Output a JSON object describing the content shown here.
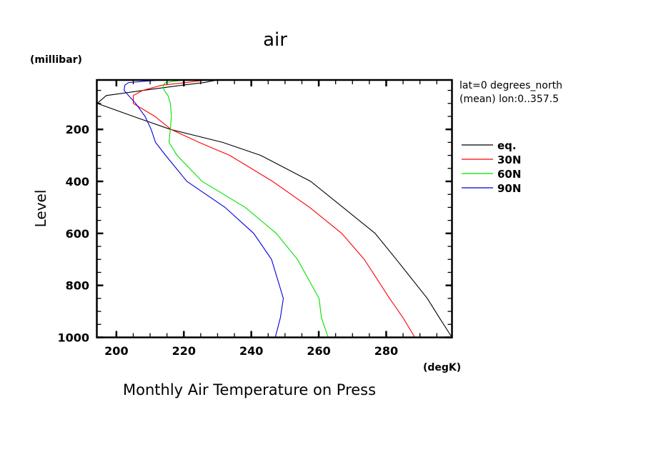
{
  "chart_data": {
    "type": "line",
    "title": "air",
    "subtitle": "Monthly Air Temperature on Press",
    "xlabel": "(degK)",
    "ylabel": "Level",
    "yunits": "(millibar)",
    "annotation": [
      "lat=0 degrees_north",
      "(mean) lon:0..357.5"
    ],
    "xlim": [
      194.2,
      299.5
    ],
    "ylim": [
      1000,
      10
    ],
    "y_inverted": true,
    "grid": false,
    "legend_position": "right",
    "x_ticks": [
      200,
      220,
      240,
      260,
      280
    ],
    "x_tick_labels": [
      "200",
      "220",
      "240",
      "260",
      "280"
    ],
    "y_ticks": [
      200,
      400,
      600,
      800,
      1000
    ],
    "y_tick_labels": [
      "200",
      "400",
      "600",
      "800",
      "1000"
    ],
    "levels": [
      10,
      20,
      30,
      50,
      70,
      100,
      150,
      200,
      250,
      300,
      400,
      500,
      600,
      700,
      850,
      925,
      1000
    ],
    "series": [
      {
        "name": "eq.",
        "color": "#000000",
        "values": [
          230,
          226,
          219.5,
          208,
          197,
          194.3,
          205,
          216,
          231.5,
          242.8,
          257.6,
          267.2,
          276.7,
          283,
          292.2,
          295.8,
          299.5
        ]
      },
      {
        "name": "30N",
        "color": "#ff0000",
        "values": [
          226.9,
          220.6,
          213.5,
          207.8,
          205,
          205,
          211.4,
          216.2,
          224.5,
          233.6,
          246.3,
          257.3,
          266.8,
          273.5,
          281,
          285,
          288.5
        ]
      },
      {
        "name": "60N",
        "color": "#00e000",
        "values": [
          219.9,
          214.6,
          213.8,
          214.2,
          215.3,
          216,
          216.3,
          216,
          215.6,
          218,
          225.4,
          238.2,
          247.4,
          253.7,
          260.1,
          260.8,
          262.8
        ]
      },
      {
        "name": "90N",
        "color": "#0000dd",
        "values": [
          213.4,
          203.6,
          202.5,
          202.3,
          203.6,
          205.7,
          208.5,
          210.3,
          211.6,
          214.6,
          220.9,
          232.2,
          240.7,
          246,
          249.5,
          248.6,
          247.1
        ]
      }
    ]
  }
}
